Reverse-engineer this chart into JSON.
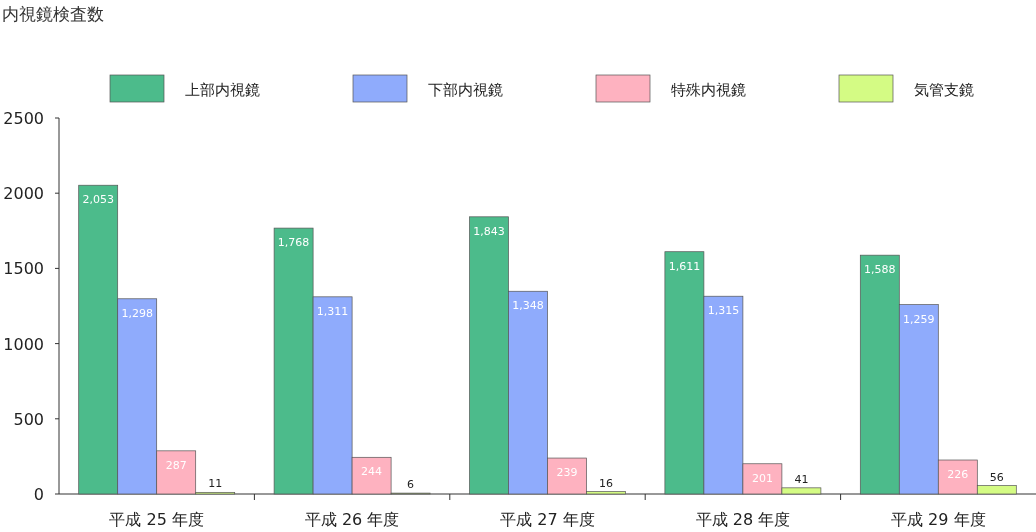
{
  "chart_data": {
    "type": "bar",
    "title": "内視鏡検査数",
    "categories": [
      "平成 25 年度",
      "平成 26 年度",
      "平成 27 年度",
      "平成 28 年度",
      "平成 29 年度"
    ],
    "series": [
      {
        "name": "上部内視鏡",
        "color": "#4cbb8b",
        "values": [
          2053,
          1768,
          1843,
          1611,
          1588
        ],
        "value_labels": [
          "2,053",
          "1,768",
          "1,843",
          "1,611",
          "1,588"
        ]
      },
      {
        "name": "下部内視鏡",
        "color": "#8fabfc",
        "values": [
          1298,
          1311,
          1348,
          1315,
          1259
        ],
        "value_labels": [
          "1,298",
          "1,311",
          "1,348",
          "1,315",
          "1,259"
        ]
      },
      {
        "name": "特殊内視鏡",
        "color": "#feb2c0",
        "values": [
          287,
          244,
          239,
          201,
          226
        ],
        "value_labels": [
          "287",
          "244",
          "239",
          "201",
          "226"
        ]
      },
      {
        "name": "気管支鏡",
        "color": "#d4fb84",
        "values": [
          11,
          6,
          16,
          41,
          56
        ],
        "value_labels": [
          "11",
          "6",
          "16",
          "41",
          "56"
        ]
      }
    ],
    "ylim": [
      0,
      2500
    ],
    "yticks": [
      0,
      500,
      1000,
      1500,
      2000,
      2500
    ],
    "grid": false,
    "legend": "top"
  }
}
